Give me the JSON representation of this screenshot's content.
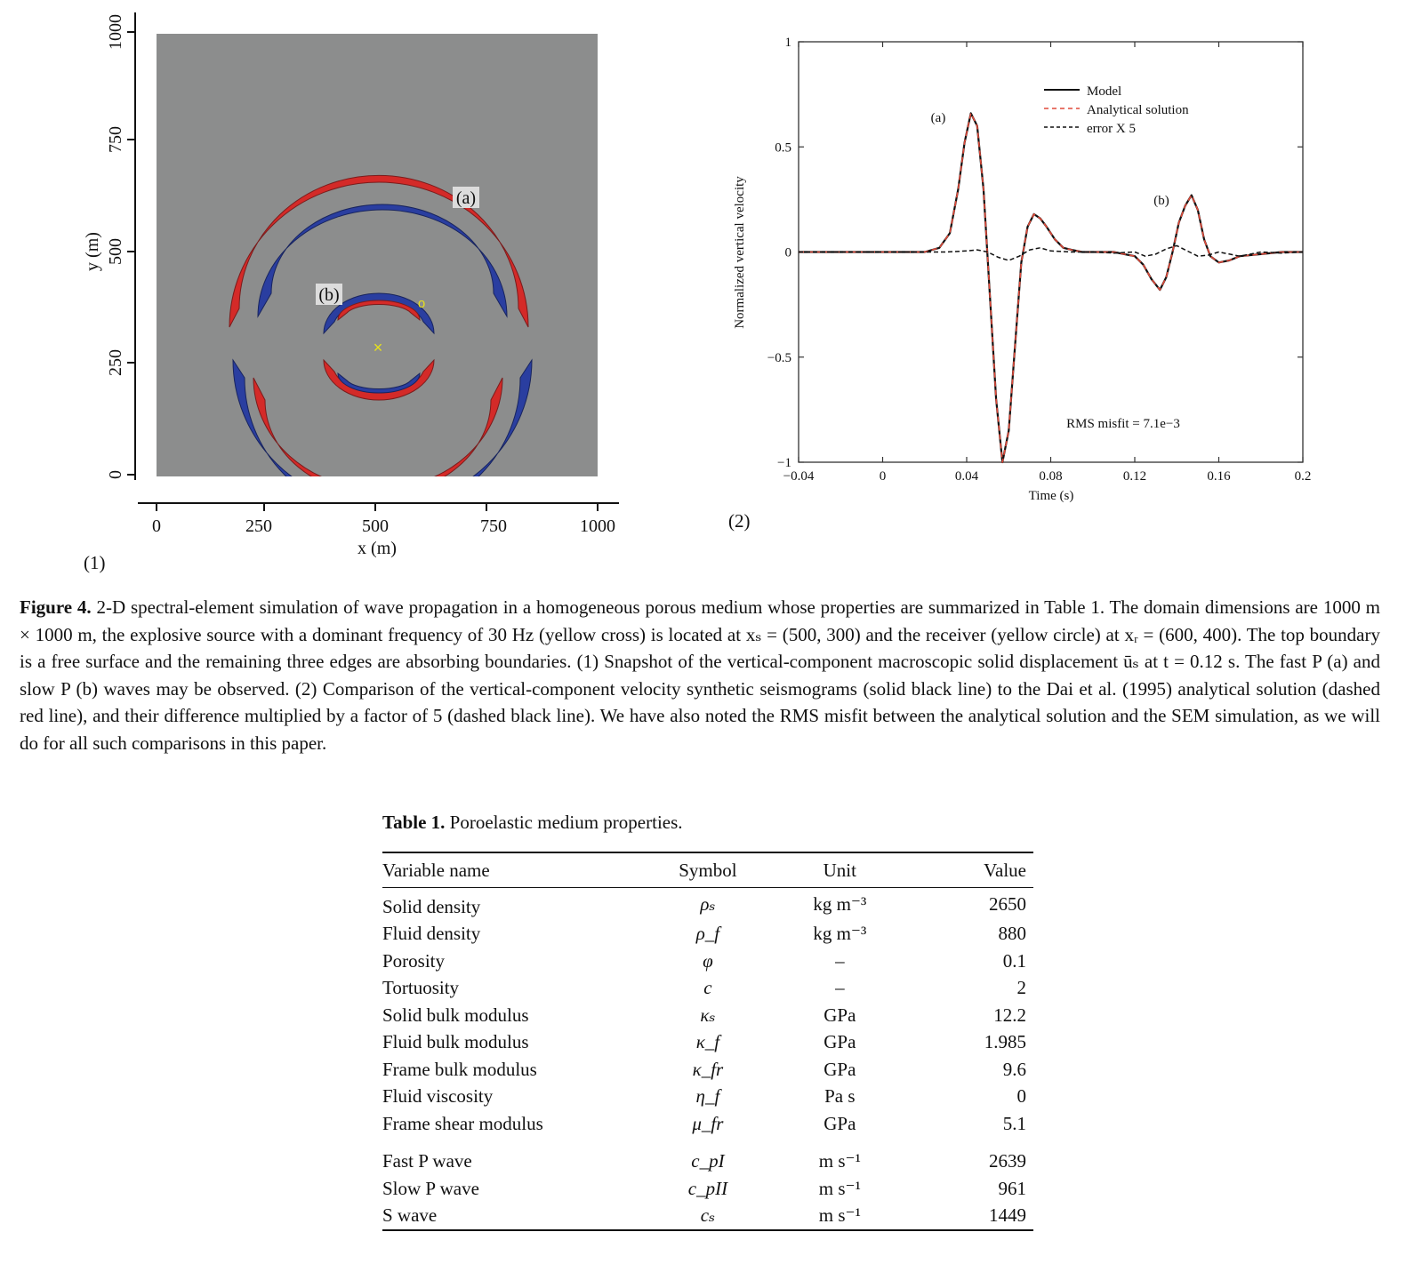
{
  "panel1": {
    "label": "(1)",
    "xlabel": "x (m)",
    "ylabel": "y (m)",
    "xticks": [
      "0",
      "250",
      "500",
      "750",
      "1000"
    ],
    "yticks": [
      "0",
      "250",
      "500",
      "750",
      "1000"
    ],
    "wave_labels": {
      "fast": "(a)",
      "slow": "(b)"
    },
    "source_marker": "×",
    "receiver_marker": "o",
    "colors": {
      "background": "#8c8d8d",
      "positive": "#d42a28",
      "negative": "#2a3ea0",
      "markers": "#e8e21a"
    }
  },
  "panel2": {
    "label": "(2)",
    "annotation": "RMS misfit = 7.1e−3",
    "peak_labels": {
      "a": "(a)",
      "b": "(b)"
    }
  },
  "chart_data": {
    "type": "line",
    "title": "",
    "xlabel": "Time (s)",
    "ylabel": "Normalized vertical velocity",
    "xlim": [
      -0.04,
      0.2
    ],
    "ylim": [
      -1,
      1
    ],
    "xticks": [
      "−0.04",
      "0",
      "0.04",
      "0.08",
      "0.12",
      "0.16",
      "0.2"
    ],
    "yticks": [
      "−1",
      "−0.5",
      "0",
      "0.5",
      "1"
    ],
    "legend_position": "top-right",
    "series": [
      {
        "name": "Model",
        "style": "solid",
        "color": "#111111",
        "x": [
          -0.04,
          0.02,
          0.027,
          0.032,
          0.036,
          0.039,
          0.042,
          0.045,
          0.048,
          0.051,
          0.054,
          0.057,
          0.06,
          0.063,
          0.066,
          0.069,
          0.072,
          0.075,
          0.078,
          0.082,
          0.086,
          0.09,
          0.095,
          0.1,
          0.105,
          0.11,
          0.115,
          0.12,
          0.124,
          0.128,
          0.132,
          0.135,
          0.138,
          0.141,
          0.144,
          0.147,
          0.15,
          0.153,
          0.156,
          0.16,
          0.165,
          0.17,
          0.18,
          0.19,
          0.2
        ],
        "y": [
          0,
          0,
          0.02,
          0.09,
          0.3,
          0.52,
          0.66,
          0.6,
          0.3,
          -0.2,
          -0.7,
          -1.0,
          -0.85,
          -0.45,
          -0.05,
          0.12,
          0.18,
          0.16,
          0.12,
          0.06,
          0.02,
          0.01,
          0.0,
          0.0,
          0.0,
          0.0,
          -0.01,
          -0.02,
          -0.06,
          -0.13,
          -0.18,
          -0.12,
          0.0,
          0.14,
          0.22,
          0.27,
          0.2,
          0.06,
          -0.02,
          -0.05,
          -0.04,
          -0.02,
          -0.01,
          0,
          0
        ]
      },
      {
        "name": "Analytical solution",
        "style": "dashed",
        "color": "#e04a3a",
        "x": [
          -0.04,
          0.02,
          0.027,
          0.032,
          0.036,
          0.039,
          0.042,
          0.045,
          0.048,
          0.051,
          0.054,
          0.057,
          0.06,
          0.063,
          0.066,
          0.069,
          0.072,
          0.075,
          0.078,
          0.082,
          0.086,
          0.09,
          0.095,
          0.1,
          0.105,
          0.11,
          0.115,
          0.12,
          0.124,
          0.128,
          0.132,
          0.135,
          0.138,
          0.141,
          0.144,
          0.147,
          0.15,
          0.153,
          0.156,
          0.16,
          0.165,
          0.17,
          0.18,
          0.19,
          0.2
        ],
        "y": [
          0,
          0,
          0.02,
          0.09,
          0.3,
          0.52,
          0.66,
          0.6,
          0.3,
          -0.2,
          -0.7,
          -1.0,
          -0.85,
          -0.45,
          -0.05,
          0.12,
          0.18,
          0.16,
          0.12,
          0.06,
          0.02,
          0.01,
          0.0,
          0.0,
          0.0,
          0.0,
          -0.01,
          -0.02,
          -0.06,
          -0.13,
          -0.18,
          -0.12,
          0.0,
          0.14,
          0.22,
          0.27,
          0.2,
          0.06,
          -0.02,
          -0.05,
          -0.04,
          -0.02,
          -0.01,
          0,
          0
        ]
      },
      {
        "name": "error X 5",
        "style": "dashed",
        "color": "#111111",
        "x": [
          -0.04,
          0.03,
          0.04,
          0.045,
          0.05,
          0.055,
          0.06,
          0.065,
          0.07,
          0.075,
          0.08,
          0.09,
          0.1,
          0.11,
          0.12,
          0.125,
          0.13,
          0.135,
          0.14,
          0.145,
          0.15,
          0.155,
          0.16,
          0.17,
          0.18,
          0.19,
          0.2
        ],
        "y": [
          0,
          0,
          0.005,
          0.01,
          0.0,
          -0.025,
          -0.04,
          -0.02,
          0.01,
          0.02,
          0.005,
          0.0,
          0.0,
          -0.005,
          0.0,
          -0.02,
          -0.01,
          0.015,
          0.03,
          0.005,
          -0.02,
          -0.015,
          0.0,
          -0.02,
          0.0,
          -0.005,
          0
        ]
      }
    ]
  },
  "caption": {
    "label": "Figure 4.",
    "text": " 2-D spectral-element simulation of wave propagation in a homogeneous porous medium whose properties are summarized in Table 1. The domain dimensions are 1000 m × 1000 m, the explosive source with a dominant frequency of 30 Hz (yellow cross) is located at xₛ = (500, 300) and the receiver (yellow circle) at xᵣ = (600, 400). The top boundary is a free surface and the remaining three edges are absorbing boundaries. (1) Snapshot of the vertical-component macroscopic solid displacement ūₛ at t = 0.12 s. The fast P (a) and slow P (b) waves may be observed. (2) Comparison of the vertical-component velocity synthetic seismograms (solid black line) to the Dai et al. (1995) analytical solution (dashed red line), and their difference multiplied by a factor of 5 (dashed black line). We have also noted the RMS misfit between the analytical solution and the SEM simulation, as we will do for all such comparisons in this paper."
  },
  "table": {
    "label": "Table 1.",
    "title": " Poroelastic medium properties.",
    "headers": [
      "Variable name",
      "Symbol",
      "Unit",
      "Value"
    ],
    "rows": [
      [
        "Solid density",
        "ρₛ",
        "kg m⁻³",
        "2650"
      ],
      [
        "Fluid density",
        "ρ_f",
        "kg m⁻³",
        "880"
      ],
      [
        "Porosity",
        "φ",
        "–",
        "0.1"
      ],
      [
        "Tortuosity",
        "c",
        "–",
        "2"
      ],
      [
        "Solid bulk modulus",
        "κₛ",
        "GPa",
        "12.2"
      ],
      [
        "Fluid bulk modulus",
        "κ_f",
        "GPa",
        "1.985"
      ],
      [
        "Frame bulk modulus",
        "κ_fr",
        "GPa",
        "9.6"
      ],
      [
        "Fluid viscosity",
        "η_f",
        "Pa s",
        "0"
      ],
      [
        "Frame shear modulus",
        "μ_fr",
        "GPa",
        "5.1"
      ],
      [
        "Fast P wave",
        "c_pI",
        "m s⁻¹",
        "2639"
      ],
      [
        "Slow P wave",
        "c_pII",
        "m s⁻¹",
        "961"
      ],
      [
        "S wave",
        "cₛ",
        "m s⁻¹",
        "1449"
      ]
    ]
  }
}
